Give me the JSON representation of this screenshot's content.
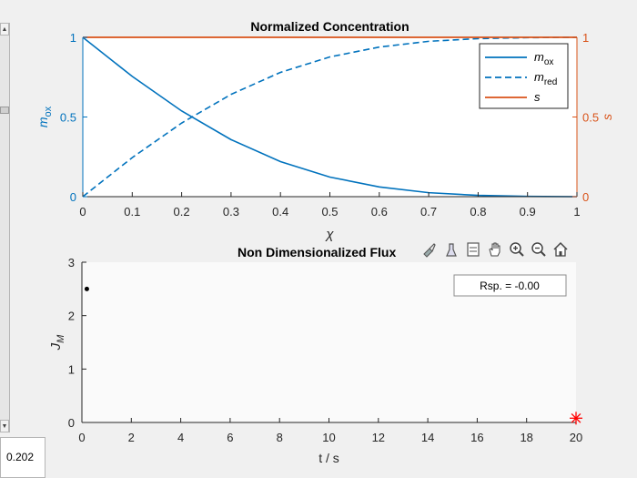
{
  "slider": {
    "value": 0.202,
    "value_text": "0.202",
    "up_arrow": "▲",
    "down_arrow": "▼"
  },
  "toolbar": {
    "icons": [
      "brush-icon",
      "data-tips-icon",
      "legend-icon",
      "pan-icon",
      "zoom-in-icon",
      "zoom-out-icon",
      "home-icon"
    ]
  },
  "colors": {
    "blue": "#0072bd",
    "orange": "#d95319",
    "red": "#ff0000",
    "black": "#000000"
  },
  "chart_data": [
    {
      "type": "line",
      "title": "Normalized Concentration",
      "xlabel": "χ",
      "ylabel_left": "m_ox",
      "ylabel_right": "s",
      "xlim": [
        0,
        1
      ],
      "ylim_left": [
        0,
        1
      ],
      "ylim_right": [
        0,
        1
      ],
      "xticks": [
        "0",
        "0.1",
        "0.2",
        "0.3",
        "0.4",
        "0.5",
        "0.6",
        "0.7",
        "0.8",
        "0.9",
        "1"
      ],
      "yticks_left": [
        "0",
        "0.5",
        "1"
      ],
      "yticks_right": [
        "0",
        "0.5",
        "1"
      ],
      "legend": {
        "placement": "top-right",
        "entries": [
          {
            "base": "m",
            "sub": "ox",
            "style": "solid",
            "color": "#0072bd"
          },
          {
            "base": "m",
            "sub": "red",
            "style": "dashed",
            "color": "#0072bd"
          },
          {
            "base": "s",
            "sub": "",
            "style": "solid",
            "color": "#d95319"
          }
        ]
      },
      "x": [
        0,
        0.1,
        0.2,
        0.3,
        0.4,
        0.5,
        0.6,
        0.7,
        0.8,
        0.9,
        1
      ],
      "series": [
        {
          "name": "m_ox",
          "axis": "left",
          "style": "solid",
          "color": "#0072bd",
          "values": [
            1,
            0.755,
            0.538,
            0.358,
            0.22,
            0.123,
            0.061,
            0.025,
            0.008,
            0.002,
            0
          ]
        },
        {
          "name": "m_red",
          "axis": "left",
          "style": "dashed",
          "color": "#0072bd",
          "values": [
            0,
            0.245,
            0.462,
            0.642,
            0.78,
            0.877,
            0.939,
            0.975,
            0.992,
            0.998,
            1
          ]
        },
        {
          "name": "s",
          "axis": "right",
          "style": "solid",
          "color": "#d95319",
          "values": [
            1,
            1,
            1,
            1,
            1,
            1,
            1,
            1,
            1,
            1,
            1
          ]
        }
      ]
    },
    {
      "type": "scatter",
      "title": "Non Dimensionalized Flux",
      "xlabel": "t / s",
      "ylabel": "J_M",
      "xlim": [
        0,
        20
      ],
      "ylim": [
        0,
        3
      ],
      "xticks": [
        "0",
        "2",
        "4",
        "6",
        "8",
        "10",
        "12",
        "14",
        "16",
        "18",
        "20"
      ],
      "yticks": [
        "0",
        "1",
        "2",
        "3"
      ],
      "annotation": "Rsp. = -0.00",
      "series": [
        {
          "marker": "dot",
          "color": "#000000",
          "points": [
            [
              0.2,
              2.5
            ]
          ]
        },
        {
          "marker": "star",
          "color": "#ff0000",
          "points": [
            [
              20,
              0.08
            ]
          ]
        }
      ]
    }
  ]
}
